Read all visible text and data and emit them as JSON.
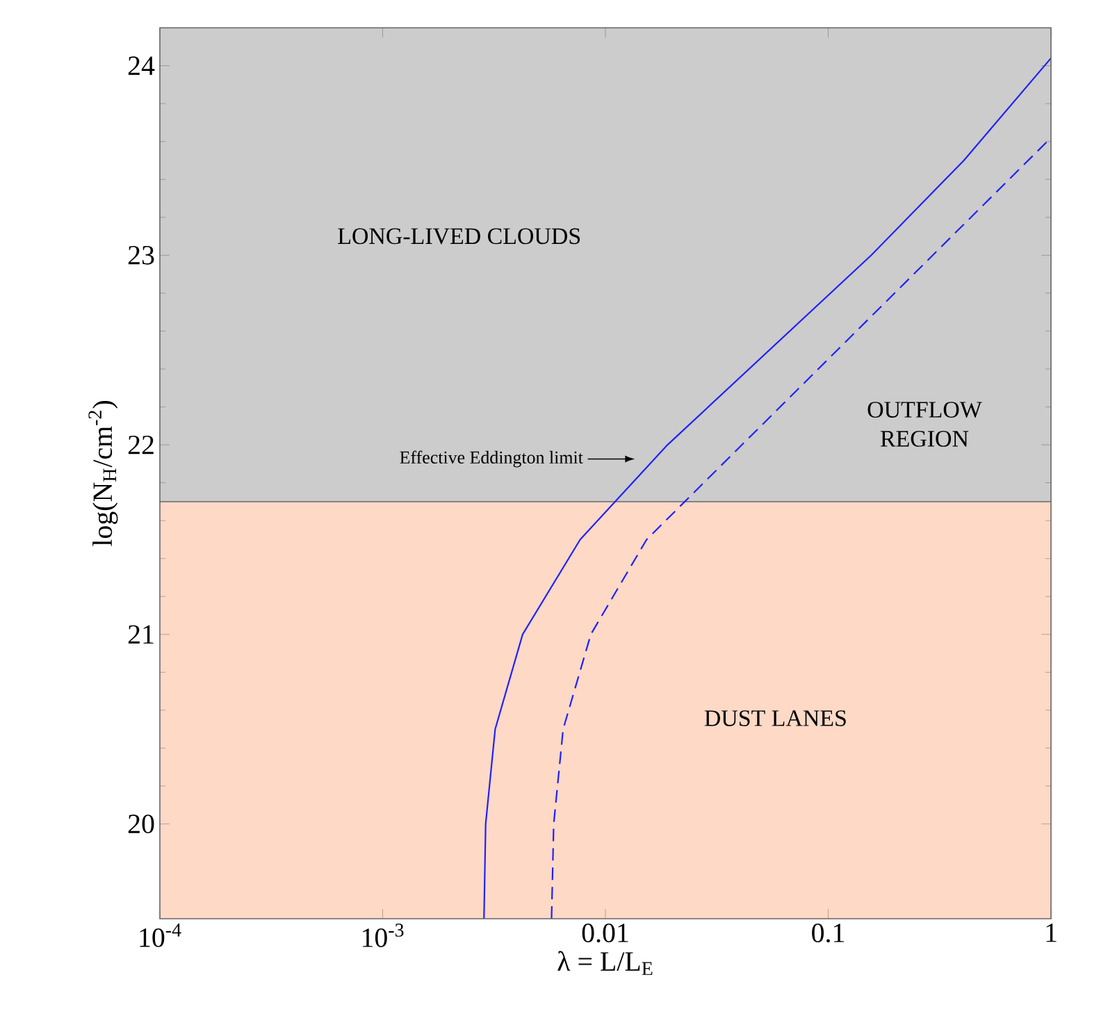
{
  "chart_data": {
    "type": "line",
    "xlabel": "λ = L/L$_{E}$",
    "ylabel": "log(N$_{H}$/cm$^{-2}$)",
    "log": "x",
    "marker": "none",
    "xlim": [
      0.0001,
      1
    ],
    "ylim": [
      19.5,
      24.2
    ],
    "xticks": [
      {
        "value": 0.0001,
        "label": "10$^{-4}$"
      },
      {
        "value": 0.001,
        "label": "10$^{-3}$"
      },
      {
        "value": 0.01,
        "label": "0.01"
      },
      {
        "value": 0.1,
        "label": "0.1"
      },
      {
        "value": 1,
        "label": "1"
      }
    ],
    "yticks": [
      20,
      21,
      22,
      23,
      24
    ],
    "series": [
      {
        "color": "#2020ff",
        "line_style": "solid",
        "x": [
          0.00285,
          0.0029,
          0.0032,
          0.00425,
          0.0077,
          0.019,
          0.156,
          0.406,
          1
        ],
        "values": [
          19.5,
          20.0,
          20.5,
          21.0,
          21.5,
          22.0,
          23.0,
          23.5,
          24.04
        ]
      },
      {
        "color": "#2020ff",
        "line_style": "dashed",
        "x": [
          0.00573,
          0.00586,
          0.00646,
          0.0086,
          0.0153,
          1
        ],
        "values": [
          19.5,
          20.0,
          20.5,
          21.0,
          21.5,
          23.62
        ]
      }
    ],
    "bands": [
      {
        "axis": "y",
        "from": 19.5,
        "to": 21.7,
        "label": "DUST LANES",
        "color": "#fdd9c6"
      },
      {
        "axis": "y",
        "from": 21.7,
        "to": 24.2,
        "label": "LONG-LIVED CLOUDS",
        "color": "#cccccc"
      }
    ],
    "ref_lines": [
      {
        "axis": "y",
        "value": 21.7,
        "color": "#777777"
      }
    ],
    "annotations": [
      "OUTFLOW REGION",
      "Effective Eddington limit"
    ]
  }
}
